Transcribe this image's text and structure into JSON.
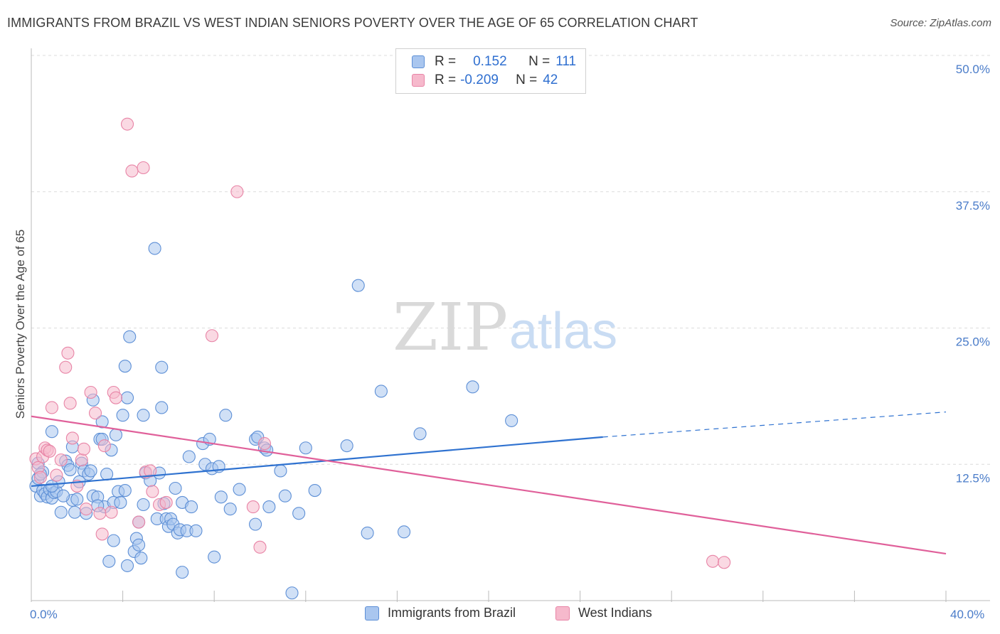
{
  "title": "IMMIGRANTS FROM BRAZIL VS WEST INDIAN SENIORS POVERTY OVER THE AGE OF 65 CORRELATION CHART",
  "source": "Source: ZipAtlas.com",
  "watermark": {
    "zip": "ZIP",
    "atlas": "atlas"
  },
  "legend": {
    "rows": [
      {
        "r_label": "R =",
        "r_value": "0.152",
        "n_label": "N =",
        "n_value": "111"
      },
      {
        "r_label": "R =",
        "r_value": "-0.209",
        "n_label": "N =",
        "n_value": "42"
      }
    ]
  },
  "bottom_legend": [
    "Immigrants from Brazil",
    "West Indians"
  ],
  "colors": {
    "blue_fill": "#a9c6ef",
    "blue_stroke": "#5d8fd6",
    "blue_line": "#2f72d0",
    "pink_fill": "#f6b9cc",
    "pink_stroke": "#e884a6",
    "pink_line": "#e0609a",
    "grid": "#dcdcdc",
    "tick_text": "#4a7cc9"
  },
  "chart_data": {
    "type": "scatter",
    "title": "IMMIGRANTS FROM BRAZIL VS WEST INDIAN SENIORS POVERTY OVER THE AGE OF 65 CORRELATION CHART",
    "xlabel": "",
    "ylabel": "Seniors Poverty Over the Age of 65",
    "xlim": [
      0,
      40
    ],
    "ylim": [
      0,
      50
    ],
    "x_tick_labels": [
      "0.0%",
      "40.0%"
    ],
    "y_tick_labels": [
      "12.5%",
      "25.0%",
      "37.5%",
      "50.0%"
    ],
    "y_ticks": [
      12.5,
      25,
      37.5,
      50
    ],
    "grid": true,
    "legend_position": "top-center",
    "series": [
      {
        "name": "Immigrants from Brazil",
        "color": "#a9c6ef",
        "trend": {
          "x": [
            0,
            25
          ],
          "y": [
            10.5,
            15.0
          ],
          "dashed_to": [
            40,
            17.3
          ]
        },
        "points": [
          [
            0.2,
            10.5
          ],
          [
            0.3,
            11.2
          ],
          [
            0.4,
            9.6
          ],
          [
            0.5,
            10.1
          ],
          [
            0.6,
            9.8
          ],
          [
            0.7,
            9.5
          ],
          [
            0.8,
            10.2
          ],
          [
            0.9,
            9.4
          ],
          [
            1.0,
            9.9
          ],
          [
            1.1,
            10.0
          ],
          [
            0.3,
            12.6
          ],
          [
            0.5,
            11.8
          ],
          [
            0.9,
            15.5
          ],
          [
            1.2,
            10.9
          ],
          [
            1.3,
            8.1
          ],
          [
            1.5,
            12.8
          ],
          [
            1.6,
            12.4
          ],
          [
            1.7,
            12.0
          ],
          [
            1.8,
            9.2
          ],
          [
            1.9,
            8.1
          ],
          [
            1.8,
            14.1
          ],
          [
            2.1,
            10.9
          ],
          [
            2.2,
            12.6
          ],
          [
            2.3,
            11.9
          ],
          [
            2.4,
            8.0
          ],
          [
            2.5,
            11.6
          ],
          [
            2.6,
            11.9
          ],
          [
            2.7,
            9.6
          ],
          [
            2.7,
            18.4
          ],
          [
            2.9,
            9.5
          ],
          [
            3.0,
            14.8
          ],
          [
            3.1,
            16.4
          ],
          [
            3.2,
            8.6
          ],
          [
            3.3,
            11.6
          ],
          [
            3.4,
            3.6
          ],
          [
            3.5,
            13.8
          ],
          [
            3.6,
            9.0
          ],
          [
            3.7,
            15.2
          ],
          [
            3.6,
            5.5
          ],
          [
            3.8,
            10.0
          ],
          [
            3.9,
            9.0
          ],
          [
            4.0,
            17.0
          ],
          [
            4.1,
            10.1
          ],
          [
            4.1,
            21.5
          ],
          [
            4.2,
            18.6
          ],
          [
            4.3,
            24.2
          ],
          [
            4.5,
            4.5
          ],
          [
            4.6,
            5.7
          ],
          [
            4.7,
            5.1
          ],
          [
            4.7,
            7.2
          ],
          [
            4.8,
            3.9
          ],
          [
            4.9,
            8.8
          ],
          [
            4.9,
            17.0
          ],
          [
            5.0,
            11.7
          ],
          [
            5.2,
            11.0
          ],
          [
            5.4,
            32.3
          ],
          [
            5.5,
            7.5
          ],
          [
            5.6,
            11.7
          ],
          [
            5.7,
            17.7
          ],
          [
            5.7,
            21.4
          ],
          [
            5.8,
            8.9
          ],
          [
            5.9,
            7.5
          ],
          [
            6.0,
            6.8
          ],
          [
            6.1,
            7.5
          ],
          [
            6.2,
            7.0
          ],
          [
            6.3,
            10.3
          ],
          [
            6.4,
            6.2
          ],
          [
            6.5,
            6.5
          ],
          [
            6.6,
            2.6
          ],
          [
            6.6,
            9.0
          ],
          [
            6.8,
            6.4
          ],
          [
            6.9,
            13.2
          ],
          [
            7.0,
            8.6
          ],
          [
            7.2,
            6.4
          ],
          [
            7.5,
            14.4
          ],
          [
            7.6,
            12.5
          ],
          [
            7.8,
            14.8
          ],
          [
            7.9,
            12.1
          ],
          [
            8.0,
            4.0
          ],
          [
            8.2,
            12.3
          ],
          [
            8.3,
            9.5
          ],
          [
            8.5,
            17.0
          ],
          [
            8.7,
            8.4
          ],
          [
            9.1,
            10.2
          ],
          [
            9.8,
            7.0
          ],
          [
            9.8,
            14.8
          ],
          [
            9.9,
            15.0
          ],
          [
            10.2,
            14.0
          ],
          [
            10.3,
            13.8
          ],
          [
            10.4,
            8.6
          ],
          [
            10.9,
            11.9
          ],
          [
            11.1,
            9.6
          ],
          [
            11.4,
            0.7
          ],
          [
            11.7,
            8.0
          ],
          [
            12.0,
            14.0
          ],
          [
            12.4,
            10.1
          ],
          [
            13.8,
            14.2
          ],
          [
            14.3,
            28.9
          ],
          [
            14.7,
            6.2
          ],
          [
            15.3,
            19.2
          ],
          [
            16.3,
            6.3
          ],
          [
            17.0,
            15.3
          ],
          [
            19.3,
            19.6
          ],
          [
            21.0,
            16.5
          ],
          [
            0.4,
            11.6
          ],
          [
            1.4,
            9.6
          ],
          [
            2.0,
            9.3
          ],
          [
            0.9,
            10.5
          ],
          [
            3.1,
            14.8
          ],
          [
            4.2,
            3.2
          ],
          [
            2.9,
            8.7
          ]
        ]
      },
      {
        "name": "West Indians",
        "color": "#f6b9cc",
        "trend": {
          "x": [
            0,
            40
          ],
          "y": [
            16.9,
            4.3
          ]
        },
        "points": [
          [
            0.2,
            13.0
          ],
          [
            0.3,
            12.2
          ],
          [
            0.4,
            11.3
          ],
          [
            0.5,
            13.2
          ],
          [
            0.6,
            14.0
          ],
          [
            0.7,
            13.8
          ],
          [
            0.8,
            13.7
          ],
          [
            0.9,
            17.7
          ],
          [
            1.1,
            11.5
          ],
          [
            1.3,
            12.9
          ],
          [
            1.5,
            21.4
          ],
          [
            1.6,
            22.7
          ],
          [
            1.7,
            18.1
          ],
          [
            1.8,
            14.9
          ],
          [
            2.0,
            10.5
          ],
          [
            2.2,
            12.9
          ],
          [
            2.3,
            13.9
          ],
          [
            2.4,
            8.4
          ],
          [
            2.6,
            19.1
          ],
          [
            2.8,
            17.2
          ],
          [
            3.0,
            8.0
          ],
          [
            3.1,
            6.1
          ],
          [
            3.2,
            14.2
          ],
          [
            3.5,
            8.1
          ],
          [
            3.6,
            19.1
          ],
          [
            3.7,
            18.6
          ],
          [
            4.2,
            43.7
          ],
          [
            4.4,
            39.4
          ],
          [
            4.7,
            7.2
          ],
          [
            4.9,
            39.7
          ],
          [
            5.0,
            11.8
          ],
          [
            5.2,
            11.9
          ],
          [
            5.3,
            10.0
          ],
          [
            5.6,
            8.8
          ],
          [
            5.9,
            9.0
          ],
          [
            7.9,
            24.3
          ],
          [
            9.0,
            37.5
          ],
          [
            9.7,
            8.6
          ],
          [
            10.0,
            4.9
          ],
          [
            10.2,
            14.4
          ],
          [
            29.8,
            3.6
          ],
          [
            30.3,
            3.5
          ]
        ]
      }
    ]
  }
}
